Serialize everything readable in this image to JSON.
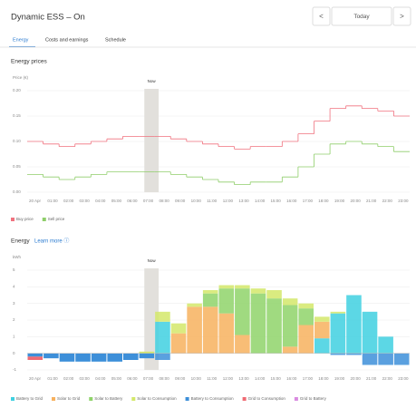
{
  "header": {
    "title": "Dynamic ESS – On",
    "prev": "<",
    "date": "Today",
    "next": ">"
  },
  "tabs": [
    "Energy",
    "Costs and earnings",
    "Schedule"
  ],
  "sections": [
    {
      "title": "Energy prices"
    },
    {
      "title": "Energy",
      "link": "Learn more ⓘ"
    }
  ],
  "chart_data": [
    {
      "type": "line",
      "y_label": "Price (€)",
      "annotation": "Now",
      "grid": true,
      "categories": [
        "20 Apr",
        "01:00",
        "02:00",
        "03:00",
        "04:00",
        "05:00",
        "06:00",
        "07:00",
        "08:00",
        "09:00",
        "10:00",
        "11:00",
        "12:00",
        "13:00",
        "14:00",
        "15:00",
        "16:00",
        "17:00",
        "18:00",
        "19:00",
        "20:00",
        "21:00",
        "22:00",
        "23:00"
      ],
      "ylim": [
        0,
        0.2
      ],
      "yticks": [
        {
          "value": 0,
          "label": "0.00"
        },
        {
          "value": 0.05,
          "label": "0.05"
        },
        {
          "value": 0.1,
          "label": "0.10"
        },
        {
          "value": 0.15,
          "label": "0.15"
        },
        {
          "value": 0.2,
          "label": "0.20"
        }
      ],
      "series": [
        {
          "name": "Buy price",
          "color": "#f0727f",
          "values": [
            0.1,
            0.095,
            0.09,
            0.095,
            0.1,
            0.105,
            0.11,
            0.11,
            0.11,
            0.105,
            0.1,
            0.095,
            0.09,
            0.085,
            0.09,
            0.09,
            0.1,
            0.115,
            0.14,
            0.165,
            0.17,
            0.165,
            0.16,
            0.15
          ]
        },
        {
          "name": "Sell price",
          "color": "#8fce6a",
          "values": [
            0.035,
            0.03,
            0.025,
            0.03,
            0.035,
            0.04,
            0.04,
            0.04,
            0.04,
            0.035,
            0.03,
            0.025,
            0.02,
            0.015,
            0.02,
            0.02,
            0.03,
            0.05,
            0.075,
            0.095,
            0.1,
            0.095,
            0.09,
            0.08
          ]
        }
      ]
    },
    {
      "type": "bar",
      "stacked": true,
      "y_label": "kWh",
      "annotation": "Now",
      "grid": true,
      "categories": [
        "20 Apr",
        "01:00",
        "02:00",
        "03:00",
        "04:00",
        "05:00",
        "06:00",
        "07:00",
        "08:00",
        "09:00",
        "10:00",
        "11:00",
        "12:00",
        "13:00",
        "14:00",
        "15:00",
        "16:00",
        "17:00",
        "18:00",
        "19:00",
        "20:00",
        "21:00",
        "22:00",
        "23:00"
      ],
      "ylim": [
        -1,
        5
      ],
      "yticks": [
        -1,
        0,
        1,
        2,
        3,
        4,
        5
      ],
      "series": [
        {
          "name": "Battery to Grid",
          "color": "#3fd0e0",
          "values": [
            0,
            0,
            0,
            0,
            0,
            0,
            0,
            0,
            1.9,
            0,
            0,
            0,
            0,
            0,
            0,
            0,
            0,
            0,
            0.9,
            2.4,
            3.5,
            2.5,
            1,
            0
          ]
        },
        {
          "name": "Solar to Grid",
          "color": "#f7b15e",
          "values": [
            0,
            0,
            0,
            0,
            0,
            0,
            0,
            0,
            0,
            1.2,
            2.8,
            2.8,
            2.4,
            1.1,
            0,
            0,
            0.4,
            1.7,
            1,
            0,
            0,
            0,
            0,
            0
          ]
        },
        {
          "name": "Solar to Battery",
          "color": "#8fd36a",
          "values": [
            0,
            0,
            0,
            0,
            0,
            0,
            0,
            0,
            0,
            0,
            0,
            0.8,
            1.5,
            2.8,
            3.6,
            3.3,
            2.5,
            1,
            0,
            0,
            0,
            0,
            0,
            0
          ]
        },
        {
          "name": "Solar to Consumption",
          "color": "#d3e86a",
          "values": [
            0,
            0,
            0,
            0,
            0,
            0,
            0,
            0.1,
            0.6,
            0.6,
            0.2,
            0.2,
            0.2,
            0.2,
            0.3,
            0.5,
            0.4,
            0.3,
            0.3,
            0.1,
            0,
            0,
            0,
            0
          ]
        },
        {
          "name": "Battery to Consumption",
          "color": "#3d8fd9",
          "values": [
            -0.2,
            -0.3,
            -0.5,
            -0.5,
            -0.5,
            -0.5,
            -0.4,
            -0.3,
            -0.4,
            0,
            0,
            0,
            0,
            0,
            0,
            0,
            0,
            0,
            0,
            -0.1,
            -0.1,
            -0.7,
            -0.7,
            -0.7
          ]
        },
        {
          "name": "Grid to Consumption",
          "color": "#ef6b73",
          "values": [
            -0.2,
            0,
            0,
            0,
            0,
            0,
            0,
            0,
            0,
            0,
            0,
            0,
            0,
            0,
            0,
            0,
            0,
            0,
            0,
            0,
            0,
            0,
            0,
            0
          ]
        },
        {
          "name": "Grid to Battery",
          "color": "#d98be0",
          "values": [
            0,
            0,
            0,
            0,
            0,
            0,
            0,
            0,
            0,
            0,
            0,
            0,
            0,
            0,
            0,
            0,
            0,
            0,
            0,
            0,
            0,
            0,
            0,
            0
          ]
        }
      ]
    }
  ]
}
